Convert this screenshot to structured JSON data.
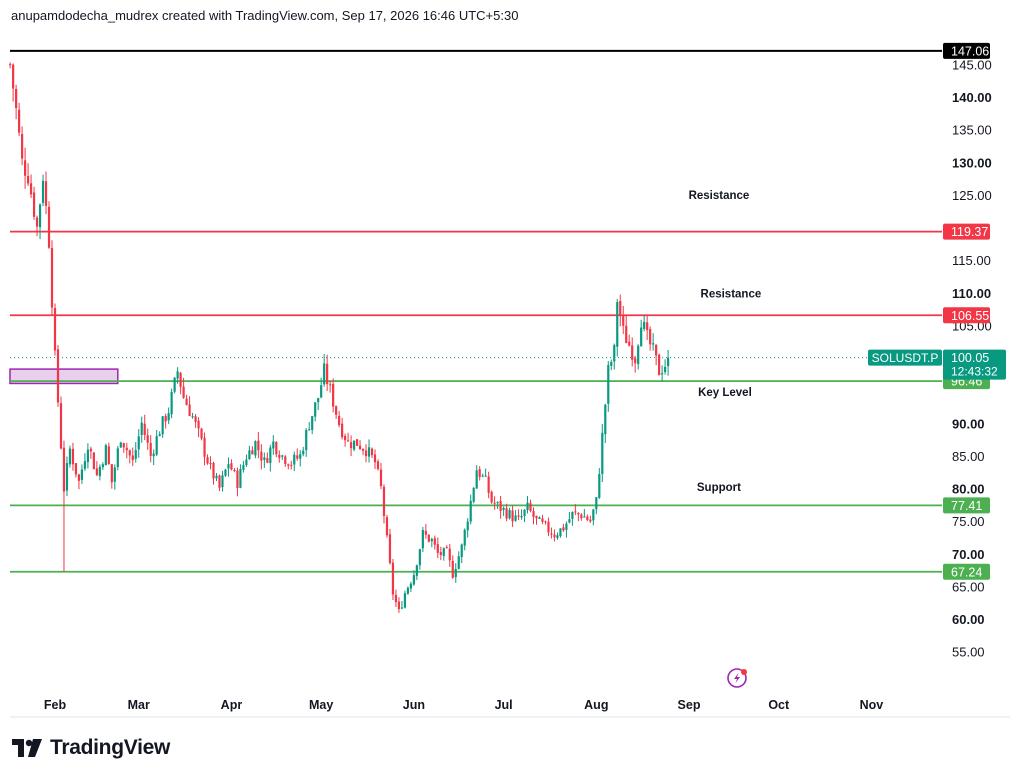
{
  "header": {
    "attribution": "anupamdodecha_mudrex created with TradingView.com, Sep 17, 2026 16:46 UTC+5:30"
  },
  "footer": {
    "brand": "TradingView"
  },
  "colors": {
    "up": "#089981",
    "down": "#f23645",
    "resistance": "#f23645",
    "support": "#4caf50",
    "top_line": "#000000",
    "price_tag": "#089981"
  },
  "chart_data": {
    "type": "candlestick",
    "symbol_tag": "SOLUSDT.P",
    "last_price": "100.05",
    "countdown": "12:43:32",
    "y_ticks": [
      {
        "value": 145,
        "label": "145.00",
        "bold": false
      },
      {
        "value": 140,
        "label": "140.00",
        "bold": true
      },
      {
        "value": 135,
        "label": "135.00",
        "bold": false
      },
      {
        "value": 130,
        "label": "130.00",
        "bold": true
      },
      {
        "value": 125,
        "label": "125.00",
        "bold": false
      },
      {
        "value": 115,
        "label": "115.00",
        "bold": false
      },
      {
        "value": 110,
        "label": "110.00",
        "bold": true
      },
      {
        "value": 105,
        "label": "105.00",
        "bold": false
      },
      {
        "value": 90,
        "label": "90.00",
        "bold": true
      },
      {
        "value": 85,
        "label": "85.00",
        "bold": false
      },
      {
        "value": 80,
        "label": "80.00",
        "bold": true
      },
      {
        "value": 75,
        "label": "75.00",
        "bold": false
      },
      {
        "value": 70,
        "label": "70.00",
        "bold": true
      },
      {
        "value": 65,
        "label": "65.00",
        "bold": false
      },
      {
        "value": 60,
        "label": "60.00",
        "bold": true
      },
      {
        "value": 55,
        "label": "55.00",
        "bold": false
      }
    ],
    "x_ticks": [
      {
        "day": 32,
        "label": "Feb"
      },
      {
        "day": 60,
        "label": "Mar"
      },
      {
        "day": 91,
        "label": "Apr"
      },
      {
        "day": 121,
        "label": "May"
      },
      {
        "day": 152,
        "label": "Jun"
      },
      {
        "day": 182,
        "label": "Jul"
      },
      {
        "day": 213,
        "label": "Aug"
      },
      {
        "day": 244,
        "label": "Sep"
      },
      {
        "day": 274,
        "label": "Oct"
      },
      {
        "day": 305,
        "label": "Nov"
      }
    ],
    "levels": [
      {
        "value": 147.06,
        "label": "147.06",
        "kind": "top"
      },
      {
        "value": 119.37,
        "label": "119.37",
        "kind": "resistance"
      },
      {
        "value": 106.55,
        "label": "106.55",
        "kind": "resistance"
      },
      {
        "value": 96.46,
        "label": "96.46",
        "kind": "support"
      },
      {
        "value": 77.41,
        "label": "77.41",
        "kind": "support"
      },
      {
        "value": 67.24,
        "label": "67.24",
        "kind": "support"
      }
    ],
    "annotations": [
      {
        "text": "Resistance",
        "day": 254,
        "value": 125.0
      },
      {
        "text": "Resistance",
        "day": 258,
        "value": 109.9
      },
      {
        "text": "Key Level",
        "day": 256,
        "value": 94.8
      },
      {
        "text": "Support",
        "day": 254,
        "value": 80.2
      }
    ],
    "zone": {
      "day_start": 17,
      "day_end": 53,
      "low": 96.1,
      "high": 98.3
    },
    "anchors": [
      [
        17,
        145.0
      ],
      [
        19,
        138.0
      ],
      [
        21,
        130.0
      ],
      [
        23,
        128.0
      ],
      [
        26,
        120.0
      ],
      [
        28,
        128.0
      ],
      [
        30,
        118.0
      ],
      [
        32,
        100.0
      ],
      [
        35,
        80.0
      ],
      [
        37,
        86.0
      ],
      [
        40,
        81.0
      ],
      [
        43,
        87.0
      ],
      [
        46,
        82.0
      ],
      [
        49,
        86.0
      ],
      [
        51,
        81.0
      ],
      [
        54,
        88.0
      ],
      [
        58,
        84.0
      ],
      [
        61,
        90.0
      ],
      [
        64,
        85.0
      ],
      [
        67,
        89.0
      ],
      [
        70,
        92.0
      ],
      [
        73,
        98.0
      ],
      [
        75,
        94.0
      ],
      [
        78,
        91.0
      ],
      [
        81,
        87.0
      ],
      [
        84,
        83.0
      ],
      [
        87,
        80.0
      ],
      [
        90,
        84.0
      ],
      [
        93,
        81.0
      ],
      [
        96,
        85.0
      ],
      [
        99,
        87.0
      ],
      [
        102,
        84.0
      ],
      [
        105,
        87.0
      ],
      [
        108,
        85.0
      ],
      [
        111,
        84.0
      ],
      [
        114,
        85.0
      ],
      [
        117,
        90.0
      ],
      [
        120,
        94.0
      ],
      [
        122,
        98.0
      ],
      [
        124,
        95.0
      ],
      [
        127,
        90.0
      ],
      [
        130,
        87.0
      ],
      [
        133,
        87.0
      ],
      [
        136,
        86.0
      ],
      [
        139,
        84.0
      ],
      [
        141,
        80.0
      ],
      [
        143,
        72.0
      ],
      [
        145,
        64.0
      ],
      [
        147,
        61.0
      ],
      [
        149,
        64.0
      ],
      [
        152,
        67.0
      ],
      [
        155,
        73.0
      ],
      [
        158,
        72.0
      ],
      [
        160,
        70.0
      ],
      [
        163,
        70.0
      ],
      [
        165,
        67.0
      ],
      [
        168,
        71.0
      ],
      [
        171,
        78.0
      ],
      [
        173,
        83.0
      ],
      [
        176,
        81.0
      ],
      [
        178,
        78.0
      ],
      [
        181,
        77.0
      ],
      [
        184,
        76.0
      ],
      [
        187,
        75.0
      ],
      [
        190,
        77.0
      ],
      [
        193,
        75.0
      ],
      [
        196,
        74.0
      ],
      [
        199,
        73.0
      ],
      [
        202,
        74.0
      ],
      [
        205,
        76.0
      ],
      [
        208,
        76.0
      ],
      [
        211,
        75.0
      ],
      [
        213,
        78.0
      ],
      [
        215,
        88.0
      ],
      [
        217,
        98.0
      ],
      [
        219,
        101.0
      ],
      [
        220,
        109.0
      ],
      [
        222,
        104.0
      ],
      [
        224,
        102.0
      ],
      [
        226,
        100.0
      ],
      [
        228,
        106.0
      ],
      [
        230,
        103.0
      ],
      [
        232,
        101.0
      ],
      [
        234,
        98.0
      ],
      [
        236,
        99.0
      ],
      [
        237,
        100.05
      ]
    ]
  }
}
